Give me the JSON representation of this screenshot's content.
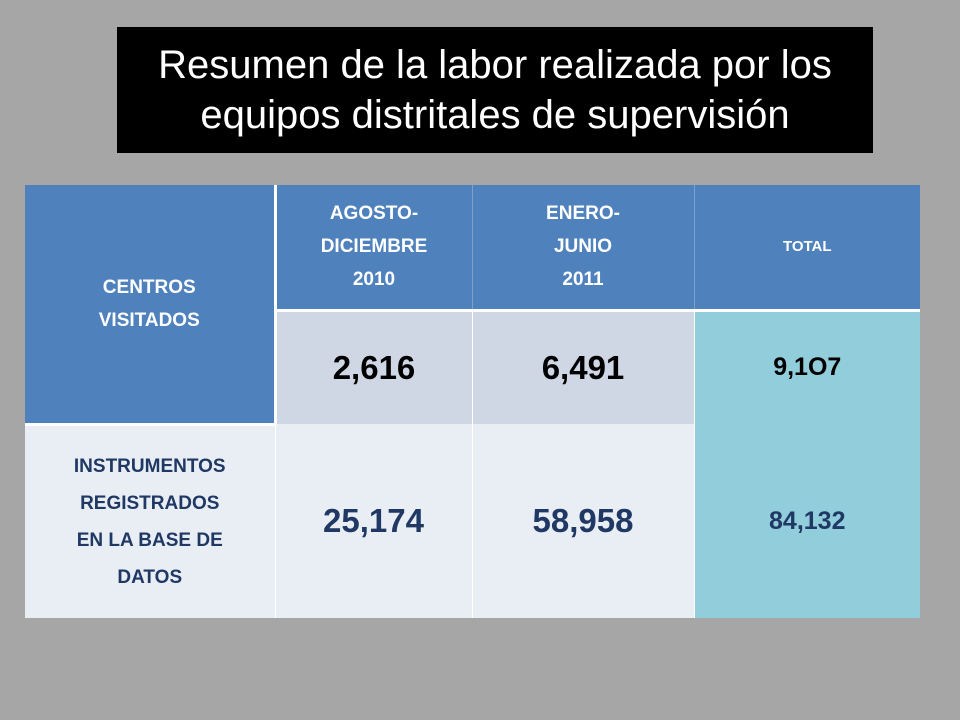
{
  "title": {
    "line1": "Resumen de la labor realizada por los",
    "line2": "equipos distritales de supervisión"
  },
  "table": {
    "row_label_1": "CENTROS\nVISITADOS",
    "row_label_2": "INSTRUMENTOS\nREGISTRADOS\nEN LA BASE DE\nDATOS",
    "columns": [
      "AGOSTO-\nDICIEMBRE\n2010",
      "ENERO-\nJUNIO\n2011",
      "TOTAL"
    ],
    "rows": [
      {
        "values": [
          "2,616",
          "6,491"
        ],
        "total": "9,1O7"
      },
      {
        "values": [
          "25,174",
          "58,958"
        ],
        "total": "84,132"
      }
    ]
  },
  "colors": {
    "background": "#a6a6a6",
    "title_bg": "#000000",
    "header_blue": "#4f81bd",
    "row1_fill": "#cfd7e5",
    "row2_fill": "#e9edf4",
    "total_fill": "#92cddc",
    "row2_text": "#1f3864"
  }
}
